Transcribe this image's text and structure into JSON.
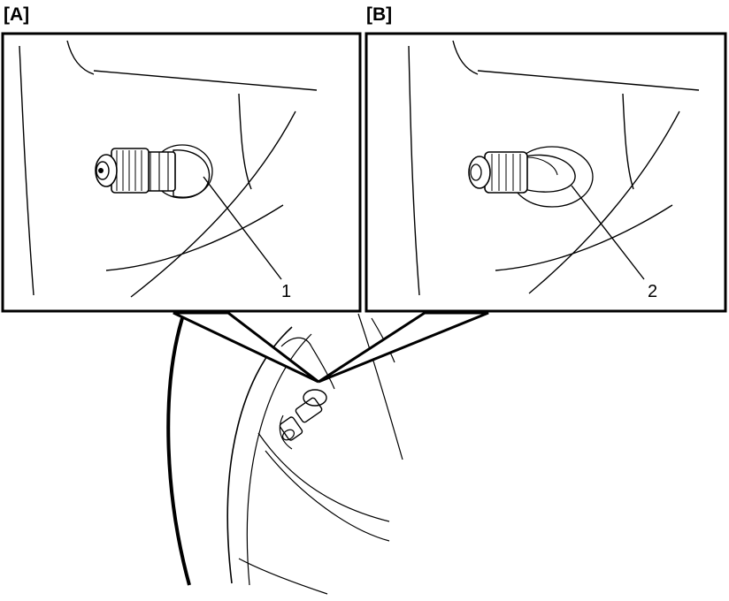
{
  "panels": {
    "a": {
      "label": "[A]",
      "callout": "1"
    },
    "b": {
      "label": "[B]",
      "callout": "2"
    }
  }
}
